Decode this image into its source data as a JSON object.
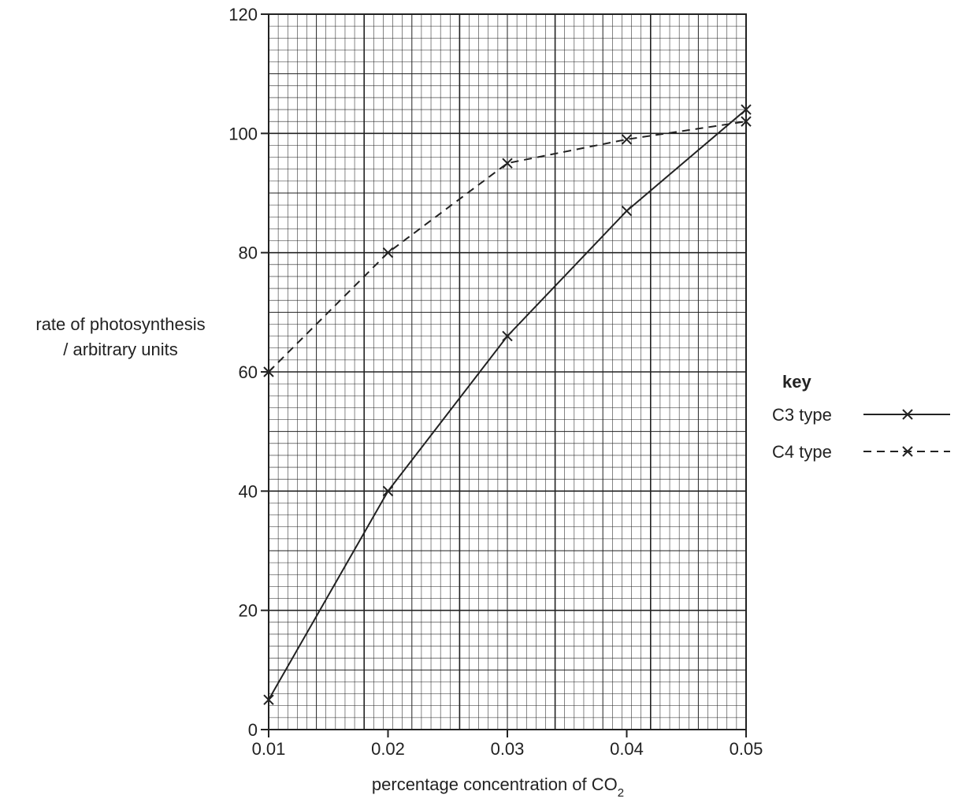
{
  "chart_data": {
    "type": "line",
    "xlabel": "percentage concentration of CO",
    "xlabel_subscript": "2",
    "ylabel_line1": "rate of photosynthesis",
    "ylabel_line2": "/ arbitrary units",
    "x": [
      0.01,
      0.02,
      0.03,
      0.04,
      0.05
    ],
    "xlim": [
      0.01,
      0.05
    ],
    "ylim": [
      0,
      120
    ],
    "x_ticks": [
      "0.01",
      "0.02",
      "0.03",
      "0.04",
      "0.05"
    ],
    "y_ticks": [
      "0",
      "20",
      "40",
      "60",
      "80",
      "100",
      "120"
    ],
    "grid": true,
    "legend_position": "right",
    "key_title": "key",
    "series": [
      {
        "name": "C3 type",
        "style": "solid",
        "values": [
          5,
          40,
          66,
          87,
          104
        ]
      },
      {
        "name": "C4 type",
        "style": "dashed",
        "values": [
          60,
          80,
          95,
          99,
          102
        ]
      }
    ]
  }
}
